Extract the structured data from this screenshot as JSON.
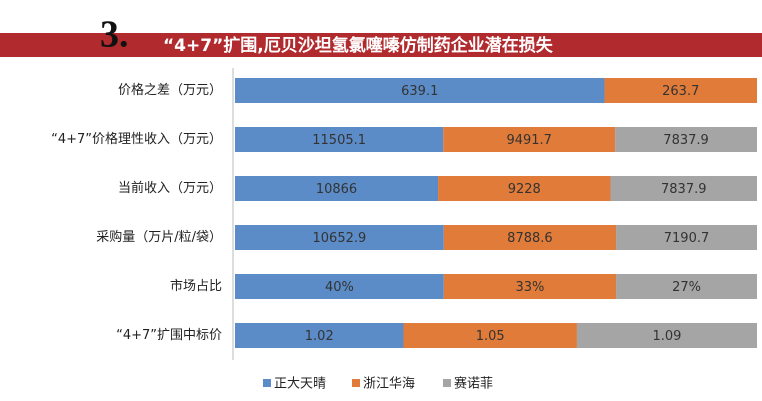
{
  "chart_data": {
    "type": "stacked-bar-100",
    "number": "3.",
    "title": "“4+7”扩围,厄贝沙坦氢氯噻嗪仿制药企业潜在损失",
    "categories": [
      "价格之差（万元）",
      "“4+7”价格理性收入（万元）",
      "当前收入（万元）",
      "采购量（万片/粒/袋）",
      "市场占比",
      "“4+7”扩围中标价"
    ],
    "series": [
      {
        "name": "正大天晴",
        "color": "#5b8cc8",
        "values": [
          639.1,
          11505.1,
          10866,
          10652.9,
          40,
          1.02
        ],
        "value_labels": [
          null,
          null,
          null,
          null,
          "40%",
          null
        ]
      },
      {
        "name": "浙江华海",
        "color": "#e07b39",
        "values": [
          263.7,
          9491.7,
          9228,
          8788.6,
          33,
          1.05
        ],
        "value_labels": [
          null,
          null,
          null,
          null,
          "33%",
          null
        ]
      },
      {
        "name": "赛诺菲",
        "color": "#a5a5a5",
        "values": [
          null,
          7837.9,
          7837.9,
          7190.7,
          27,
          1.09
        ],
        "value_labels": [
          null,
          null,
          null,
          null,
          "27%",
          null
        ]
      }
    ],
    "legend": "bottom"
  }
}
